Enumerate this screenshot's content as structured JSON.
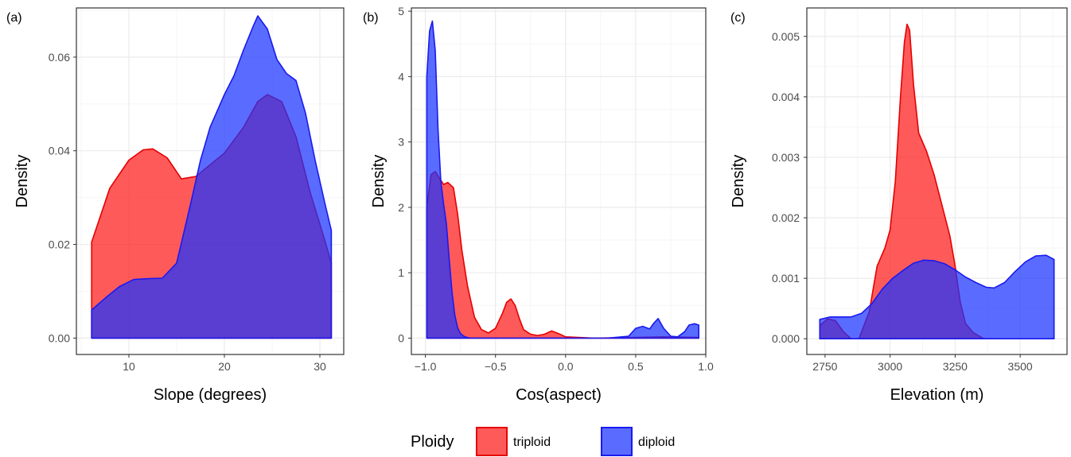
{
  "colors": {
    "triploid": "#ff1a1a",
    "diploid": "#1a33ff",
    "triploid_line": "#e60000",
    "diploid_line": "#1a1aee",
    "grid_major": "#ebebeb",
    "grid_minor": "#f5f5f5",
    "panel_border": "#333333"
  },
  "legend": {
    "title": "Ploidy",
    "items": [
      {
        "key": "triploid",
        "label": "triploid"
      },
      {
        "key": "diploid",
        "label": "diploid"
      }
    ]
  },
  "chart_data": [
    {
      "type": "area",
      "panel_tag": "(a)",
      "xlabel": "Slope (degrees)",
      "ylabel": "Density",
      "xlim": [
        4.5,
        32.5
      ],
      "ylim": [
        -0.0035,
        0.0705
      ],
      "x_ticks": [
        10,
        20,
        30
      ],
      "x_tick_labels": [
        "10",
        "20",
        "30"
      ],
      "y_ticks": [
        0,
        0.02,
        0.04,
        0.06
      ],
      "y_tick_labels": [
        "0.00",
        "0.02",
        "0.04",
        "0.06"
      ],
      "grid": true,
      "series": [
        {
          "name": "triploid",
          "x": [
            6.1,
            8,
            10,
            11.5,
            12.5,
            14,
            15.5,
            17,
            18.5,
            20,
            22,
            23.5,
            24.5,
            26,
            27.5,
            29,
            30.5,
            31.2
          ],
          "y": [
            0.0205,
            0.032,
            0.038,
            0.0402,
            0.0404,
            0.0385,
            0.034,
            0.0345,
            0.037,
            0.0395,
            0.045,
            0.0505,
            0.052,
            0.0505,
            0.043,
            0.031,
            0.021,
            0.016
          ]
        },
        {
          "name": "diploid",
          "x": [
            6.1,
            7.5,
            9,
            10.5,
            12,
            13.5,
            15,
            16.5,
            17.5,
            18.5,
            20,
            21,
            22,
            23,
            23.5,
            24.5,
            25.5,
            26.5,
            27.5,
            28.5,
            29.5,
            30.5,
            31.2
          ],
          "y": [
            0.006,
            0.0085,
            0.011,
            0.0125,
            0.0127,
            0.0128,
            0.016,
            0.029,
            0.038,
            0.045,
            0.052,
            0.056,
            0.0615,
            0.0665,
            0.0688,
            0.066,
            0.0595,
            0.0565,
            0.055,
            0.048,
            0.038,
            0.029,
            0.023
          ]
        }
      ]
    },
    {
      "type": "area",
      "panel_tag": "(b)",
      "xlabel": "Cos(aspect)",
      "ylabel": "Density",
      "xlim": [
        -1.1,
        1.0
      ],
      "ylim": [
        -0.25,
        5.05
      ],
      "x_ticks": [
        -1.0,
        -0.5,
        0.0,
        0.5,
        1.0
      ],
      "x_tick_labels": [
        "−1.0",
        "−0.5",
        "0.0",
        "0.5",
        "1.0"
      ],
      "y_ticks": [
        0,
        1,
        2,
        3,
        4,
        5
      ],
      "y_tick_labels": [
        "0",
        "1",
        "2",
        "3",
        "4",
        "5"
      ],
      "grid": true,
      "series": [
        {
          "name": "triploid",
          "x": [
            -0.99,
            -0.96,
            -0.93,
            -0.9,
            -0.87,
            -0.84,
            -0.8,
            -0.77,
            -0.74,
            -0.7,
            -0.65,
            -0.6,
            -0.55,
            -0.5,
            -0.45,
            -0.42,
            -0.39,
            -0.36,
            -0.33,
            -0.3,
            -0.25,
            -0.2,
            -0.15,
            -0.1,
            -0.05,
            0.0,
            0.2,
            0.5,
            0.7,
            0.95
          ],
          "y": [
            2.0,
            2.5,
            2.55,
            2.45,
            2.35,
            2.38,
            2.3,
            1.9,
            1.35,
            0.8,
            0.32,
            0.13,
            0.08,
            0.15,
            0.38,
            0.55,
            0.6,
            0.5,
            0.3,
            0.13,
            0.06,
            0.04,
            0.06,
            0.11,
            0.07,
            0.02,
            0.0,
            0.01,
            0.02,
            0.01
          ]
        },
        {
          "name": "diploid",
          "x": [
            -0.99,
            -0.97,
            -0.95,
            -0.93,
            -0.91,
            -0.89,
            -0.87,
            -0.85,
            -0.83,
            -0.81,
            -0.79,
            -0.77,
            -0.75,
            -0.72,
            -0.68,
            -0.6,
            0.3,
            0.45,
            0.5,
            0.55,
            0.6,
            0.63,
            0.66,
            0.7,
            0.75,
            0.8,
            0.85,
            0.88,
            0.92,
            0.95
          ],
          "y": [
            4.0,
            4.7,
            4.85,
            4.4,
            3.2,
            2.4,
            2.05,
            1.75,
            1.2,
            0.7,
            0.35,
            0.16,
            0.07,
            0.02,
            0.0,
            0.0,
            0.0,
            0.03,
            0.15,
            0.18,
            0.14,
            0.23,
            0.3,
            0.15,
            0.03,
            0.02,
            0.1,
            0.2,
            0.22,
            0.2
          ]
        }
      ]
    },
    {
      "type": "area",
      "panel_tag": "(c)",
      "xlabel": "Elevation (m)",
      "ylabel": "Density",
      "xlim": [
        2680,
        3680
      ],
      "ylim": [
        -0.00026,
        0.00547
      ],
      "x_ticks": [
        2750,
        3000,
        3250,
        3500
      ],
      "x_tick_labels": [
        "2750",
        "3000",
        "3250",
        "3500"
      ],
      "y_ticks": [
        0,
        0.001,
        0.002,
        0.003,
        0.004,
        0.005
      ],
      "y_tick_labels": [
        "0.000",
        "0.001",
        "0.002",
        "0.003",
        "0.004",
        "0.005"
      ],
      "grid": true,
      "series": [
        {
          "name": "triploid",
          "x": [
            2730,
            2760,
            2790,
            2820,
            2850,
            2880,
            2920,
            2950,
            2980,
            3000,
            3020,
            3040,
            3055,
            3065,
            3075,
            3090,
            3110,
            3140,
            3170,
            3200,
            3230,
            3250,
            3270,
            3290,
            3320,
            3360,
            3400
          ],
          "y": [
            0.00022,
            0.00033,
            0.0003,
            0.00012,
            0.0,
            0.0,
            0.00045,
            0.0012,
            0.0015,
            0.0018,
            0.0026,
            0.004,
            0.0049,
            0.0052,
            0.0051,
            0.0042,
            0.0034,
            0.0031,
            0.0027,
            0.0022,
            0.0017,
            0.0012,
            0.0006,
            0.00025,
            0.0001,
            0.0,
            0.0
          ]
        },
        {
          "name": "diploid",
          "x": [
            2730,
            2770,
            2810,
            2850,
            2890,
            2930,
            2970,
            3010,
            3050,
            3090,
            3130,
            3170,
            3210,
            3250,
            3290,
            3330,
            3370,
            3400,
            3440,
            3480,
            3520,
            3560,
            3600,
            3630
          ],
          "y": [
            0.00032,
            0.00036,
            0.00036,
            0.00036,
            0.00042,
            0.00058,
            0.00082,
            0.001,
            0.00113,
            0.00125,
            0.0013,
            0.00129,
            0.00124,
            0.00114,
            0.00102,
            0.00093,
            0.00085,
            0.00084,
            0.00093,
            0.00111,
            0.00127,
            0.00137,
            0.00138,
            0.00131
          ]
        }
      ]
    }
  ]
}
